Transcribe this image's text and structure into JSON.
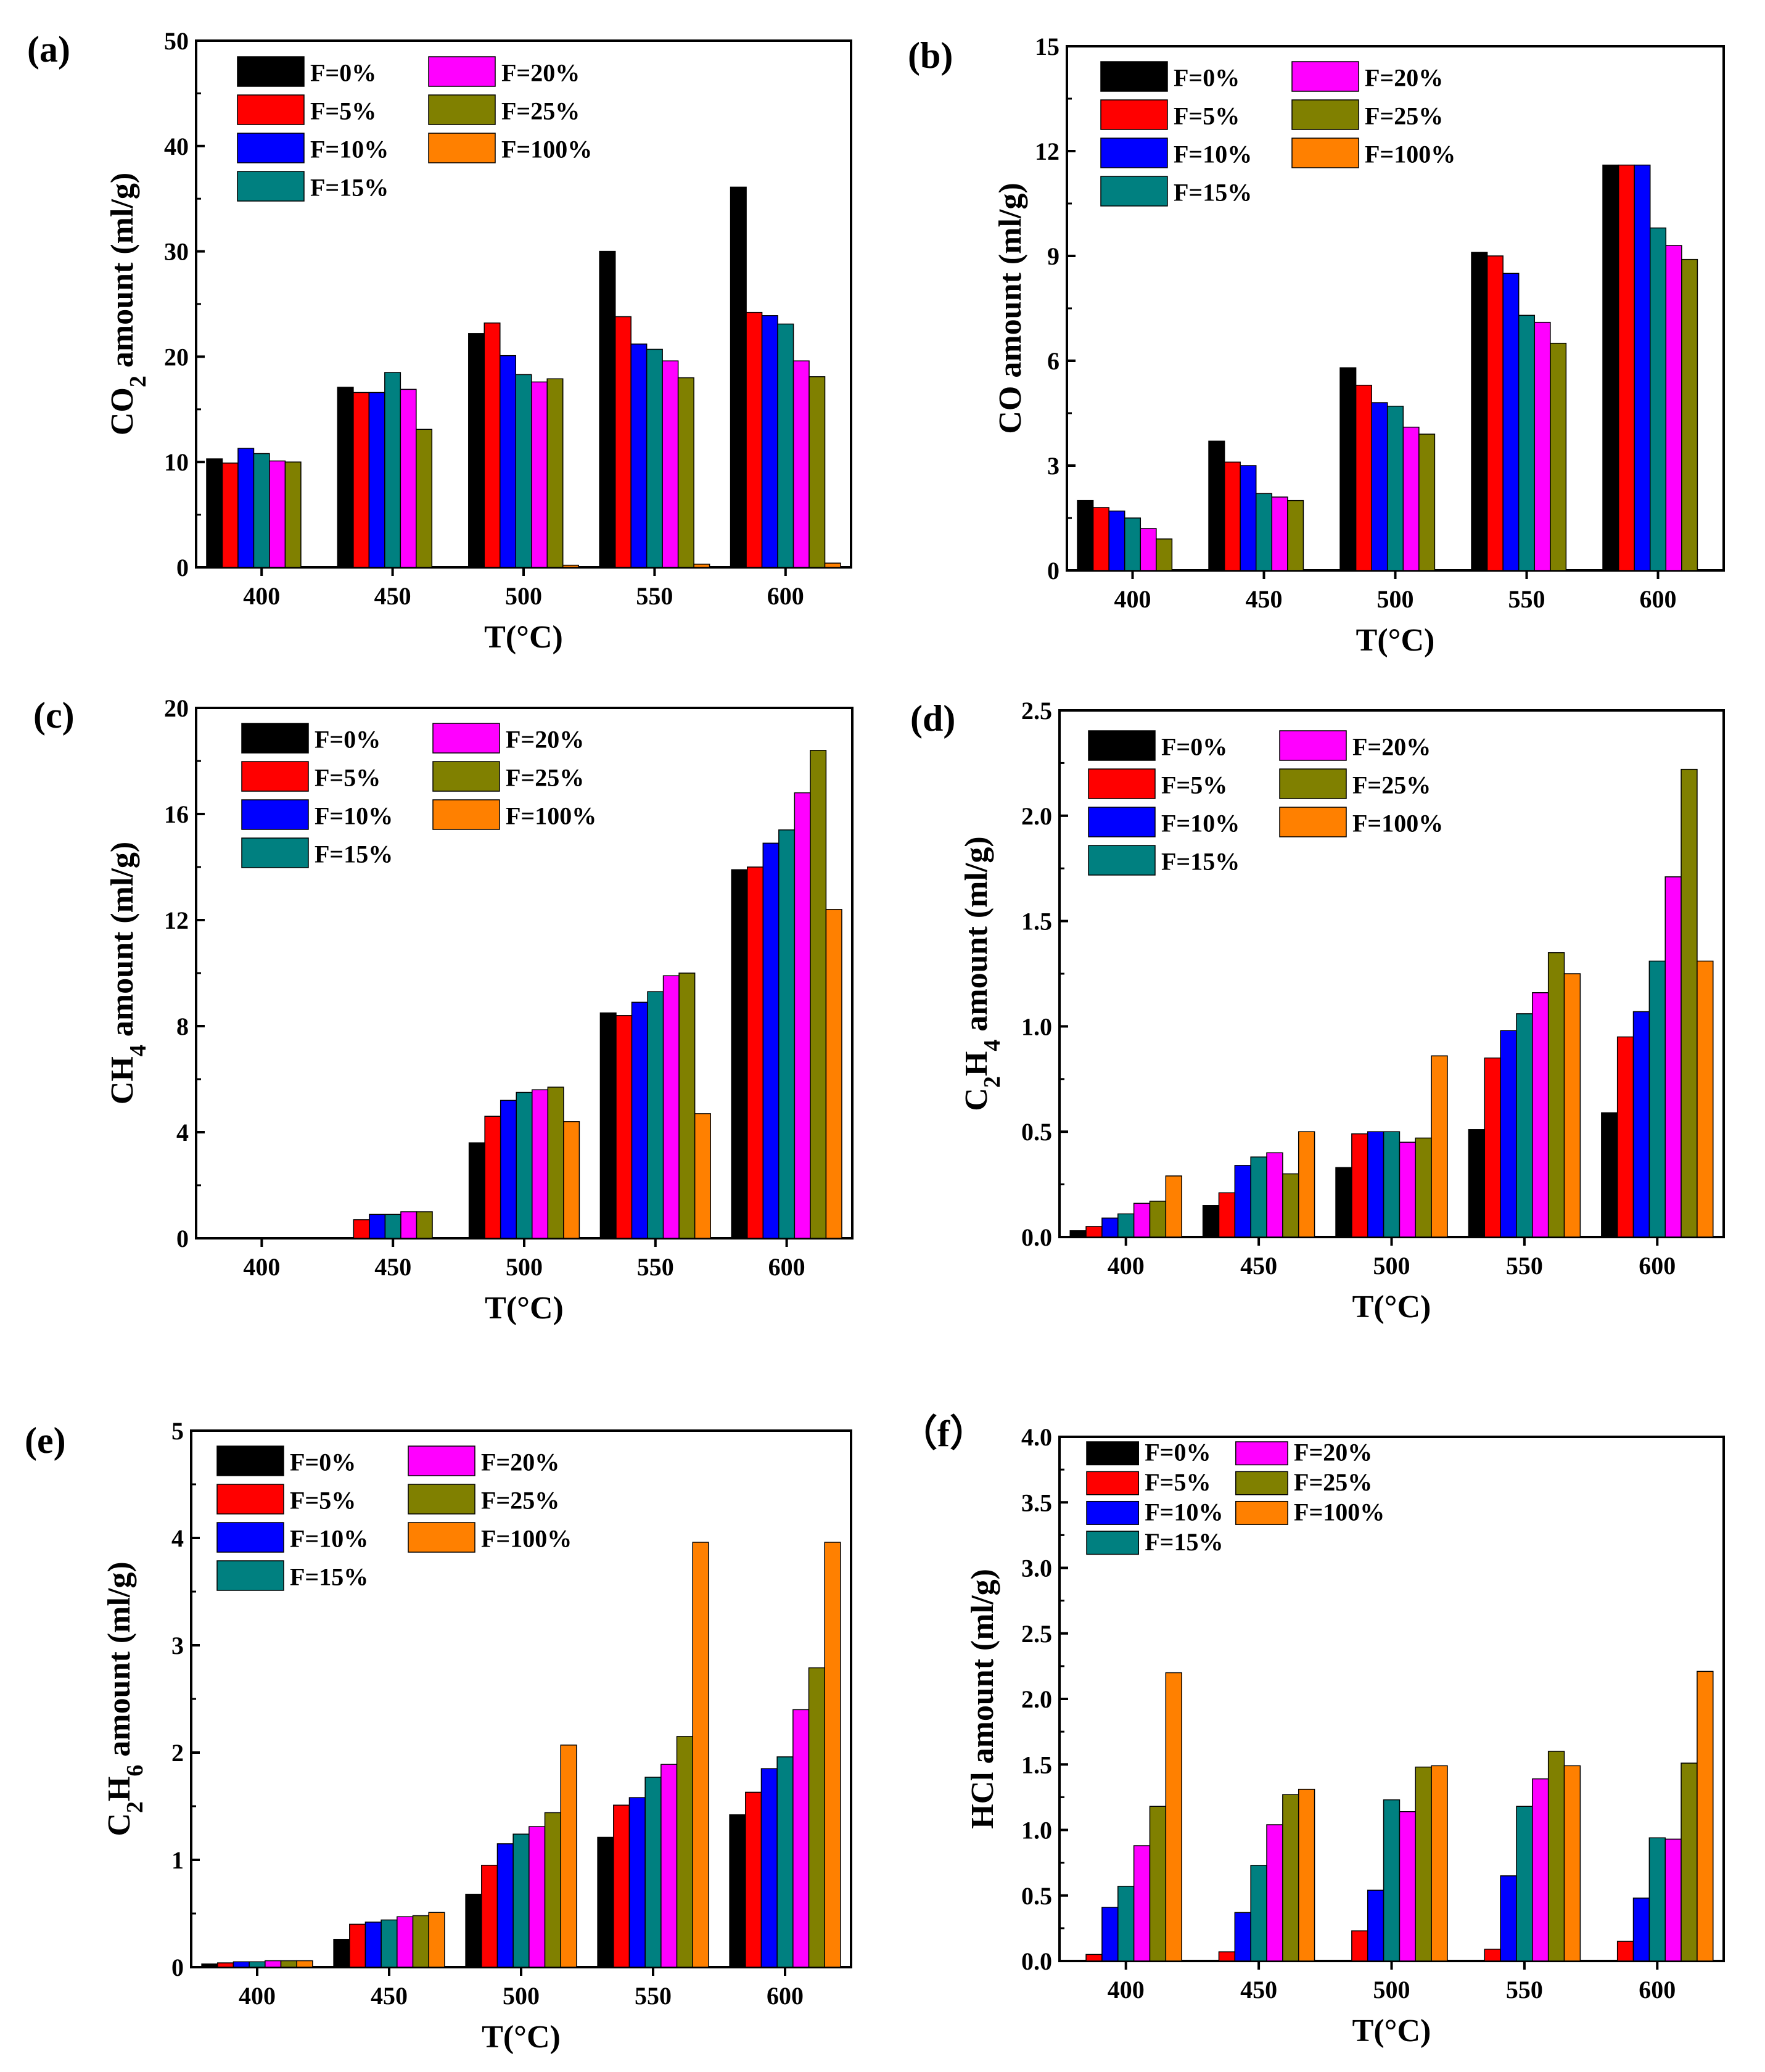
{
  "colors": {
    "F=0%": "#000000",
    "F=5%": "#ff0000",
    "F=10%": "#0000ff",
    "F=15%": "#008080",
    "F=20%": "#ff00ff",
    "F=25%": "#808000",
    "F=100%": "#ff8000"
  },
  "chart_data": [
    {
      "label": "(a)",
      "type": "bar",
      "xlabel": "T(°C)",
      "ylabel_main": "CO",
      "ylabel_sub": "2",
      "ylabel_rest": " amount (ml/g)",
      "categories": [
        "400",
        "450",
        "500",
        "550",
        "600"
      ],
      "ylim": [
        0,
        50
      ],
      "yticks": [
        "0",
        "10",
        "20",
        "30",
        "40",
        "50"
      ],
      "series": [
        {
          "name": "F=0%",
          "values": [
            10.3,
            17.1,
            22.2,
            30.0,
            36.1
          ]
        },
        {
          "name": "F=5%",
          "values": [
            9.9,
            16.6,
            23.2,
            23.8,
            24.2
          ]
        },
        {
          "name": "F=10%",
          "values": [
            11.3,
            16.6,
            20.1,
            21.2,
            23.9
          ]
        },
        {
          "name": "F=15%",
          "values": [
            10.8,
            18.5,
            18.3,
            20.7,
            23.1
          ]
        },
        {
          "name": "F=20%",
          "values": [
            10.1,
            16.9,
            17.6,
            19.6,
            19.6
          ]
        },
        {
          "name": "F=25%",
          "values": [
            10.0,
            13.1,
            17.9,
            18.0,
            18.1
          ]
        },
        {
          "name": "F=100%",
          "values": [
            0.0,
            0.0,
            0.2,
            0.3,
            0.4
          ]
        }
      ]
    },
    {
      "label": "(b)",
      "type": "bar",
      "xlabel": "T(°C)",
      "ylabel_main": "CO amount (ml/g)",
      "ylabel_sub": "",
      "ylabel_rest": "",
      "categories": [
        "400",
        "450",
        "500",
        "550",
        "600"
      ],
      "ylim": [
        0,
        15
      ],
      "yticks": [
        "0",
        "3",
        "6",
        "9",
        "12",
        "15"
      ],
      "series": [
        {
          "name": "F=0%",
          "values": [
            2.0,
            3.7,
            5.8,
            9.1,
            11.6
          ]
        },
        {
          "name": "F=5%",
          "values": [
            1.8,
            3.1,
            5.3,
            9.0,
            11.6
          ]
        },
        {
          "name": "F=10%",
          "values": [
            1.7,
            3.0,
            4.8,
            8.5,
            11.6
          ]
        },
        {
          "name": "F=15%",
          "values": [
            1.5,
            2.2,
            4.7,
            7.3,
            9.8
          ]
        },
        {
          "name": "F=20%",
          "values": [
            1.2,
            2.1,
            4.1,
            7.1,
            9.3
          ]
        },
        {
          "name": "F=25%",
          "values": [
            0.9,
            2.0,
            3.9,
            6.5,
            8.9
          ]
        },
        {
          "name": "F=100%",
          "values": [
            0.0,
            0.0,
            0.0,
            0.0,
            0.0
          ]
        }
      ]
    },
    {
      "label": "(c)",
      "type": "bar",
      "xlabel": "T(°C)",
      "ylabel_main": "CH",
      "ylabel_sub": "4",
      "ylabel_rest": " amount (ml/g)",
      "categories": [
        "400",
        "450",
        "500",
        "550",
        "600"
      ],
      "ylim": [
        0,
        20
      ],
      "yticks": [
        "0",
        "4",
        "8",
        "12",
        "16",
        "20"
      ],
      "series": [
        {
          "name": "F=0%",
          "values": [
            0.0,
            0.0,
            3.6,
            8.5,
            13.9
          ]
        },
        {
          "name": "F=5%",
          "values": [
            0.0,
            0.7,
            4.6,
            8.4,
            14.0
          ]
        },
        {
          "name": "F=10%",
          "values": [
            0.0,
            0.9,
            5.2,
            8.9,
            14.9
          ]
        },
        {
          "name": "F=15%",
          "values": [
            0.0,
            0.9,
            5.5,
            9.3,
            15.4
          ]
        },
        {
          "name": "F=20%",
          "values": [
            0.0,
            1.0,
            5.6,
            9.9,
            16.8
          ]
        },
        {
          "name": "F=25%",
          "values": [
            0.0,
            1.0,
            5.7,
            10.0,
            18.4
          ]
        },
        {
          "name": "F=100%",
          "values": [
            0.0,
            0.0,
            4.4,
            4.7,
            12.4
          ]
        }
      ]
    },
    {
      "label": "(d)",
      "type": "bar",
      "xlabel": "T(°C)",
      "ylabel_main": "C",
      "ylabel_sub": "2",
      "ylabel_rest": "H",
      "ylabel_sub2": "4",
      "ylabel_rest2": " amount (ml/g)",
      "categories": [
        "400",
        "450",
        "500",
        "550",
        "600"
      ],
      "ylim": [
        0,
        2.5
      ],
      "yticks": [
        "0.0",
        "0.5",
        "1.0",
        "1.5",
        "2.0",
        "2.5"
      ],
      "series": [
        {
          "name": "F=0%",
          "values": [
            0.03,
            0.15,
            0.33,
            0.51,
            0.59
          ]
        },
        {
          "name": "F=5%",
          "values": [
            0.05,
            0.21,
            0.49,
            0.85,
            0.95
          ]
        },
        {
          "name": "F=10%",
          "values": [
            0.09,
            0.34,
            0.5,
            0.98,
            1.07
          ]
        },
        {
          "name": "F=15%",
          "values": [
            0.11,
            0.38,
            0.5,
            1.06,
            1.31
          ]
        },
        {
          "name": "F=20%",
          "values": [
            0.16,
            0.4,
            0.45,
            1.16,
            1.71
          ]
        },
        {
          "name": "F=25%",
          "values": [
            0.17,
            0.3,
            0.47,
            1.35,
            2.22
          ]
        },
        {
          "name": "F=100%",
          "values": [
            0.29,
            0.5,
            0.86,
            1.25,
            1.31
          ]
        }
      ]
    },
    {
      "label": "(e)",
      "type": "bar",
      "xlabel": "T(°C)",
      "ylabel_main": "C",
      "ylabel_sub": "2",
      "ylabel_rest": "H",
      "ylabel_sub2": "6",
      "ylabel_rest2": " amount (ml/g)",
      "categories": [
        "400",
        "450",
        "500",
        "550",
        "600"
      ],
      "ylim": [
        0,
        5
      ],
      "yticks": [
        "0",
        "1",
        "2",
        "3",
        "4",
        "5"
      ],
      "series": [
        {
          "name": "F=0%",
          "values": [
            0.03,
            0.26,
            0.68,
            1.21,
            1.42
          ]
        },
        {
          "name": "F=5%",
          "values": [
            0.04,
            0.4,
            0.95,
            1.51,
            1.63
          ]
        },
        {
          "name": "F=10%",
          "values": [
            0.05,
            0.42,
            1.15,
            1.58,
            1.85
          ]
        },
        {
          "name": "F=15%",
          "values": [
            0.05,
            0.44,
            1.24,
            1.77,
            1.96
          ]
        },
        {
          "name": "F=20%",
          "values": [
            0.06,
            0.47,
            1.31,
            1.89,
            2.4
          ]
        },
        {
          "name": "F=25%",
          "values": [
            0.06,
            0.48,
            1.44,
            2.15,
            2.79
          ]
        },
        {
          "name": "F=100%",
          "values": [
            0.06,
            0.51,
            2.07,
            3.96,
            3.96
          ]
        }
      ]
    },
    {
      "label": "（f）",
      "type": "bar",
      "xlabel": "T(°C)",
      "ylabel_main": "HCl amount (ml/g)",
      "ylabel_sub": "",
      "ylabel_rest": "",
      "categories": [
        "400",
        "450",
        "500",
        "550",
        "600"
      ],
      "ylim": [
        0,
        4.0
      ],
      "yticks": [
        "0.0",
        "0.5",
        "1.0",
        "1.5",
        "2.0",
        "2.5",
        "3.0",
        "3.5",
        "4.0"
      ],
      "series": [
        {
          "name": "F=0%",
          "values": [
            0.0,
            0.0,
            0.0,
            0.0,
            0.0
          ]
        },
        {
          "name": "F=5%",
          "values": [
            0.05,
            0.07,
            0.23,
            0.09,
            0.15
          ]
        },
        {
          "name": "F=10%",
          "values": [
            0.41,
            0.37,
            0.54,
            0.65,
            0.48
          ]
        },
        {
          "name": "F=15%",
          "values": [
            0.57,
            0.73,
            1.23,
            1.18,
            0.94
          ]
        },
        {
          "name": "F=20%",
          "values": [
            0.88,
            1.04,
            1.14,
            1.39,
            0.93
          ]
        },
        {
          "name": "F=25%",
          "values": [
            1.18,
            1.27,
            1.48,
            1.6,
            1.51
          ]
        },
        {
          "name": "F=100%",
          "values": [
            2.2,
            1.31,
            1.49,
            1.49,
            2.21
          ]
        }
      ]
    }
  ]
}
